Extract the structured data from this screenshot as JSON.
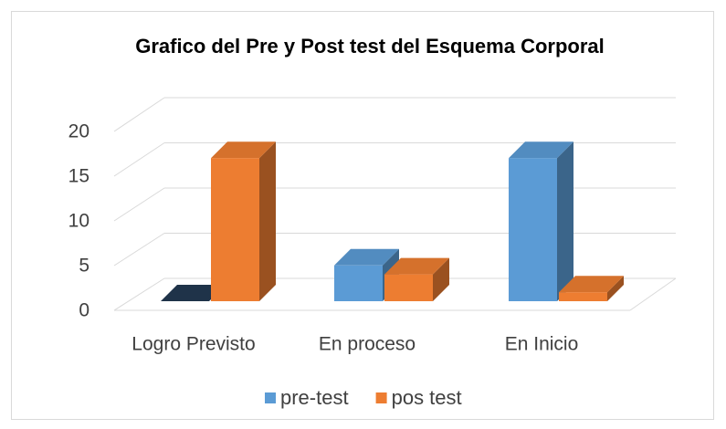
{
  "chart_data": {
    "type": "bar3d",
    "title": "Grafico del Pre y Post test del Esquema Corporal",
    "categories": [
      "Logro Previsto",
      "En proceso",
      "En Inicio"
    ],
    "series": [
      {
        "name": "pre-test",
        "color": "#5b9bd5",
        "values": [
          0,
          4,
          16
        ]
      },
      {
        "name": "pos test",
        "color": "#ed7d31",
        "values": [
          16,
          3,
          1
        ]
      }
    ],
    "ylim": [
      0,
      20
    ],
    "yticks": [
      0,
      5,
      10,
      15,
      20
    ],
    "grid": true,
    "legend": "bottom"
  }
}
